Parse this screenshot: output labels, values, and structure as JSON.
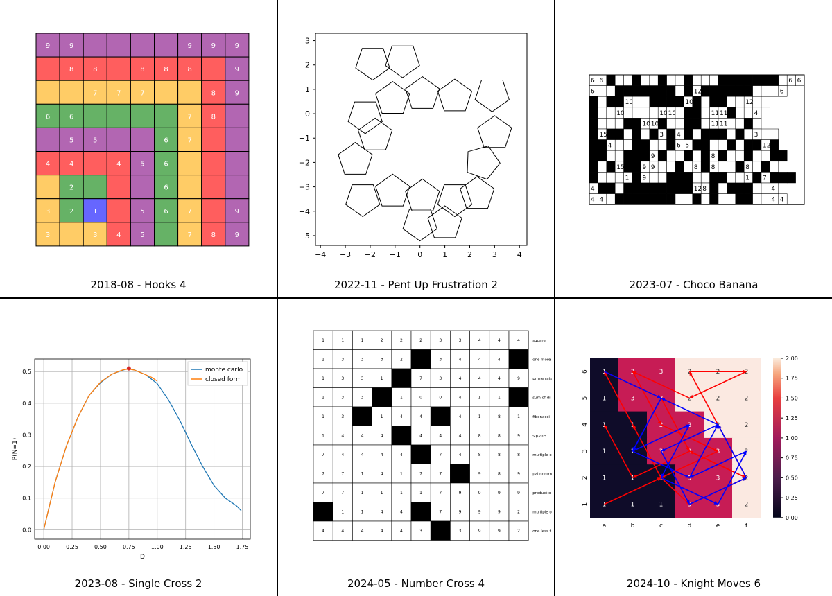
{
  "captions": [
    "2018-08 - Hooks 4",
    "2022-11 - Pent Up Frustration 2",
    "2023-07 - Choco Banana",
    "2023-08 - Single Cross 2",
    "2024-05 - Number Cross 4",
    "2024-10 - Knight Moves 6"
  ],
  "colors": {
    "purple": "#b266b2",
    "red": "#ff5e5e",
    "yellow": "#ffcc66",
    "green": "#66b266",
    "blue": "#6666ff",
    "mc": "#1f77b4",
    "cf": "#ff7f0e",
    "knight_red": "#ff0000",
    "knight_blue": "#0000ff"
  },
  "hooks": {
    "colors": [
      [
        "P",
        "P",
        "P",
        "P",
        "P",
        "P",
        "P",
        "P",
        "P"
      ],
      [
        "R",
        "R",
        "R",
        "R",
        "R",
        "R",
        "R",
        "R",
        "P"
      ],
      [
        "Y",
        "Y",
        "Y",
        "Y",
        "Y",
        "Y",
        "Y",
        "R",
        "P"
      ],
      [
        "G",
        "G",
        "G",
        "G",
        "G",
        "G",
        "Y",
        "R",
        "P"
      ],
      [
        "P",
        "P",
        "P",
        "P",
        "P",
        "G",
        "Y",
        "R",
        "P"
      ],
      [
        "R",
        "R",
        "R",
        "R",
        "P",
        "G",
        "Y",
        "R",
        "P"
      ],
      [
        "Y",
        "G",
        "G",
        "R",
        "P",
        "G",
        "Y",
        "R",
        "P"
      ],
      [
        "Y",
        "G",
        "B",
        "R",
        "P",
        "G",
        "Y",
        "R",
        "P"
      ],
      [
        "Y",
        "Y",
        "Y",
        "R",
        "P",
        "G",
        "Y",
        "R",
        "P"
      ]
    ],
    "numbers": [
      [
        "9",
        "9",
        "",
        "",
        "",
        "",
        "9",
        "9",
        "9"
      ],
      [
        "",
        "8",
        "8",
        "",
        "8",
        "8",
        "8",
        "",
        "9"
      ],
      [
        "",
        "",
        "7",
        "7",
        "7",
        "",
        "",
        "8",
        "9"
      ],
      [
        "6",
        "6",
        "",
        "",
        "",
        "",
        "7",
        "8",
        ""
      ],
      [
        "",
        "5",
        "5",
        "",
        "",
        "6",
        "7",
        "",
        ""
      ],
      [
        "4",
        "4",
        "",
        "4",
        "5",
        "6",
        "",
        "",
        ""
      ],
      [
        "",
        "2",
        "",
        "",
        "",
        "6",
        "",
        "",
        ""
      ],
      [
        "3",
        "2",
        "1",
        "",
        "5",
        "6",
        "7",
        "",
        "9"
      ],
      [
        "3",
        "",
        "3",
        "4",
        "5",
        "",
        "7",
        "8",
        "9"
      ]
    ]
  },
  "pent": {
    "x_ticks": [
      "−4",
      "−3",
      "−2",
      "−1",
      "0",
      "1",
      "2",
      "3",
      "4"
    ],
    "y_ticks": [
      "3",
      "2",
      "1",
      "0",
      "−1",
      "−2",
      "−3",
      "−4",
      "−5"
    ],
    "xlim": [
      -4.2,
      4.3
    ],
    "ylim": [
      -5.4,
      3.3
    ],
    "pentagons": [
      [
        -1.9,
        2.1,
        36
      ],
      [
        -0.7,
        2.2,
        -36
      ],
      [
        -1.1,
        0.6,
        0
      ],
      [
        -2.2,
        -0.1,
        36
      ],
      [
        -1.8,
        -0.9,
        0
      ],
      [
        -2.6,
        -1.9,
        0
      ],
      [
        -1.1,
        -3.2,
        0
      ],
      [
        -2.3,
        -3.5,
        36
      ],
      [
        0.1,
        -3.4,
        0
      ],
      [
        1.4,
        -3.5,
        36
      ],
      [
        2.3,
        -3.3,
        0
      ],
      [
        0.0,
        -4.5,
        36
      ],
      [
        1.0,
        -4.5,
        0
      ],
      [
        2.5,
        -2.0,
        -20
      ],
      [
        3.0,
        -0.8,
        0
      ],
      [
        2.9,
        0.8,
        36
      ],
      [
        1.4,
        0.7,
        0
      ],
      [
        0.1,
        0.8,
        0
      ]
    ]
  },
  "choco": {
    "rows": [
      "66#..#..#..#...#######.66",
      "6..#######.#12######...6",
      "#.##10..####10#.##..12..",
      "#..10....1010.##.1111#..4",
      "#...##1010#..##.1111..#.",
      "#15##.#.#3#4#.###.#.3..",
      "##4..##..#65##..#.##12#",
      "##..###9#..#.#8#..#..##",
      "#.#15##99..#.8#8..#8.#.",
      "#...1#9..###..##..1#7###",
      "4##.########128#.###..4",
      "44.#######..#.#..##..44"
    ]
  },
  "single": {
    "chart_data": {
      "type": "line",
      "xlabel": "D",
      "ylabel": "P(N=1)",
      "xlim": [
        -0.08,
        1.82
      ],
      "ylim": [
        -0.03,
        0.54
      ],
      "x_ticks": [
        "0.00",
        "0.25",
        "0.50",
        "0.75",
        "1.00",
        "1.25",
        "1.50",
        "1.75"
      ],
      "y_ticks": [
        "0.0",
        "0.1",
        "0.2",
        "0.3",
        "0.4",
        "0.5"
      ],
      "grid": true,
      "legend": "top-right",
      "series": [
        {
          "name": "monte carlo",
          "x": [
            0,
            0.1,
            0.2,
            0.3,
            0.4,
            0.5,
            0.6,
            0.7,
            0.75,
            0.8,
            0.9,
            1.0,
            1.1,
            1.2,
            1.3,
            1.4,
            1.5,
            1.6,
            1.7,
            1.74
          ],
          "y": [
            0,
            0.15,
            0.265,
            0.355,
            0.425,
            0.465,
            0.492,
            0.505,
            0.51,
            0.505,
            0.49,
            0.462,
            0.41,
            0.345,
            0.27,
            0.2,
            0.14,
            0.1,
            0.075,
            0.06
          ]
        },
        {
          "name": "closed form",
          "x": [
            0,
            0.1,
            0.2,
            0.3,
            0.4,
            0.5,
            0.6,
            0.7,
            0.75,
            0.8,
            0.9,
            0.95,
            1.0
          ],
          "y": [
            0,
            0.15,
            0.265,
            0.355,
            0.425,
            0.467,
            0.492,
            0.506,
            0.508,
            0.505,
            0.49,
            0.482,
            0.47
          ]
        }
      ],
      "marker": {
        "x": 0.75,
        "y": 0.51
      }
    },
    "legend_labels": [
      "monte carlo",
      "closed form"
    ]
  },
  "numcross": {
    "rows": [
      [
        "1",
        "1",
        "1",
        "2",
        "2",
        "2",
        "3",
        "3",
        "4",
        "4",
        "4"
      ],
      [
        "1",
        "3",
        "3",
        "3",
        "2",
        "#",
        "3",
        "4",
        "4",
        "4",
        "#"
      ],
      [
        "1",
        "3",
        "3",
        "1",
        "#",
        "7",
        "3",
        "4",
        "4",
        "4",
        "9"
      ],
      [
        "1",
        "3",
        "3",
        "#",
        "1",
        "0",
        "0",
        "4",
        "1",
        "1",
        "#"
      ],
      [
        "1",
        "3",
        "#",
        "1",
        "4",
        "4",
        "#",
        "4",
        "1",
        "8",
        "1"
      ],
      [
        "1",
        "4",
        "4",
        "4",
        "#",
        "4",
        "4",
        "4",
        "8",
        "8",
        "9"
      ],
      [
        "7",
        "4",
        "4",
        "4",
        "4",
        "#",
        "7",
        "4",
        "8",
        "8",
        "8"
      ],
      [
        "7",
        "7",
        "1",
        "4",
        "1",
        "7",
        "7",
        "#",
        "9",
        "8",
        "9"
      ],
      [
        "7",
        "7",
        "1",
        "1",
        "1",
        "1",
        "7",
        "9",
        "9",
        "9",
        "9"
      ],
      [
        "#",
        "1",
        "1",
        "4",
        "4",
        "#",
        "7",
        "9",
        "9",
        "9",
        "2"
      ],
      [
        "4",
        "4",
        "4",
        "4",
        "4",
        "3",
        "#",
        "3",
        "9",
        "9",
        "2"
      ]
    ],
    "clues": [
      "square",
      "one more",
      "prime rais",
      "sum of di",
      "fibonacci",
      "square",
      "multiple o",
      "palindrom",
      "product o",
      "multiple o",
      "one less t"
    ]
  },
  "knight": {
    "col_labels": [
      "a",
      "b",
      "c",
      "d",
      "e",
      "f"
    ],
    "row_labels": [
      "6",
      "5",
      "4",
      "3",
      "2",
      "1"
    ],
    "values": [
      [
        1,
        3,
        3,
        2,
        2,
        2
      ],
      [
        1,
        3,
        3,
        2,
        2,
        2
      ],
      [
        1,
        1,
        3,
        3,
        2,
        2
      ],
      [
        1,
        1,
        3,
        3,
        3,
        2
      ],
      [
        1,
        1,
        1,
        3,
        3,
        2
      ],
      [
        1,
        1,
        1,
        3,
        3,
        2
      ]
    ],
    "colorbar_ticks": [
      "2.00",
      "1.75",
      "1.50",
      "1.25",
      "1.00",
      "0.75",
      "0.50",
      "0.25",
      "0.00"
    ],
    "red_path": [
      [
        "a",
        1
      ],
      [
        "c",
        2
      ],
      [
        "b",
        4
      ],
      [
        "a",
        6
      ],
      [
        "c",
        5
      ],
      [
        "d",
        3
      ],
      [
        "f",
        2
      ],
      [
        "e",
        4
      ],
      [
        "d",
        6
      ],
      [
        "f",
        6
      ],
      [
        "d",
        5
      ],
      [
        "b",
        6
      ],
      [
        "c",
        4
      ],
      [
        "e",
        3
      ],
      [
        "c",
        2
      ],
      [
        "d",
        1
      ],
      [
        "f",
        2
      ],
      [
        "d",
        3
      ],
      [
        "b",
        2
      ],
      [
        "a",
        4
      ]
    ],
    "blue_path": [
      [
        "a",
        6
      ],
      [
        "c",
        5
      ],
      [
        "b",
        3
      ],
      [
        "d",
        4
      ],
      [
        "c",
        2
      ],
      [
        "e",
        1
      ],
      [
        "f",
        3
      ],
      [
        "d",
        2
      ],
      [
        "e",
        4
      ],
      [
        "c",
        3
      ],
      [
        "d",
        1
      ],
      [
        "f",
        2
      ],
      [
        "e",
        4
      ],
      [
        "c",
        5
      ],
      [
        "b",
        3
      ],
      [
        "d",
        2
      ]
    ]
  }
}
